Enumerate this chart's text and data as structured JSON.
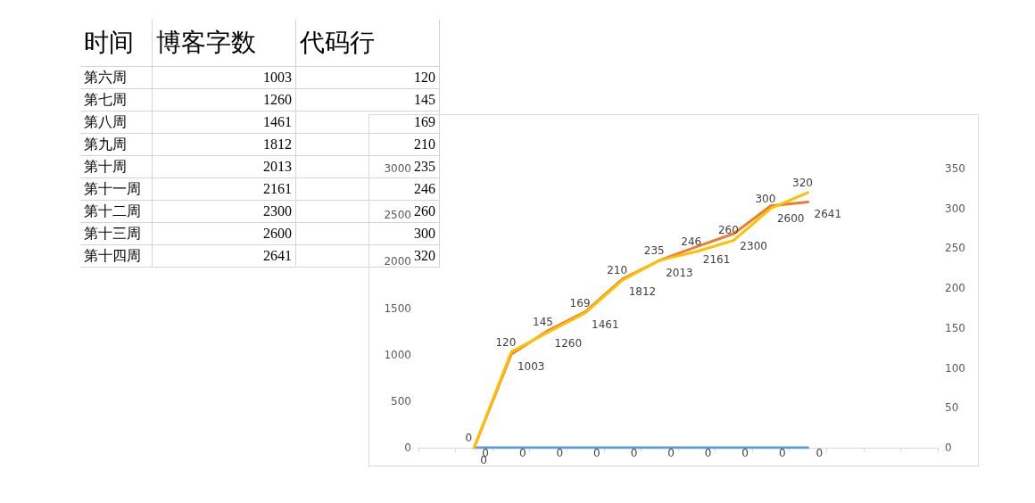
{
  "chart_data": [
    {
      "type": "other",
      "annotations": [
        "时间",
        "博客字数",
        "代码行",
        "第六周",
        "1003",
        "120",
        "第七周",
        "1260",
        "145",
        "第八周",
        "1461",
        "169",
        "第九周",
        "1812",
        "210",
        "第十周",
        "2013",
        "235",
        "第十一周",
        "2161",
        "246",
        "第十二周",
        "2300",
        "260",
        "第十三周",
        "2600",
        "300",
        "第十四周",
        "2641",
        "320"
      ]
    },
    {
      "type": "line",
      "categories": [
        null,
        null,
        null,
        null,
        null,
        null,
        null,
        null,
        null,
        null,
        null,
        null,
        null,
        null
      ],
      "series": [
        {
          "color": "#5b9bd5",
          "values": [
            null,
            0,
            0,
            0,
            0,
            0,
            0,
            0,
            0,
            0,
            0,
            null,
            null,
            null
          ]
        },
        {
          "color": "#ed7d31",
          "values": [
            null,
            0,
            1003,
            1260,
            1461,
            1812,
            2013,
            2161,
            2300,
            2600,
            2641,
            null,
            null,
            null
          ]
        },
        {
          "color": "#ffc000",
          "axis": "y2",
          "values": [
            null,
            0,
            120,
            145,
            169,
            210,
            235,
            246,
            260,
            300,
            320,
            null,
            null,
            null
          ]
        }
      ],
      "ylim": [
        0,
        3000
      ],
      "yticks": [
        0,
        500,
        1000,
        1500,
        2000,
        2500,
        3000
      ],
      "y2lim": [
        0,
        350
      ],
      "y2ticks": [
        0,
        50,
        100,
        150,
        200,
        250,
        300,
        350
      ],
      "data_labels": true,
      "marker": "none",
      "line_style": "solid",
      "tick_labels": "y"
    }
  ]
}
